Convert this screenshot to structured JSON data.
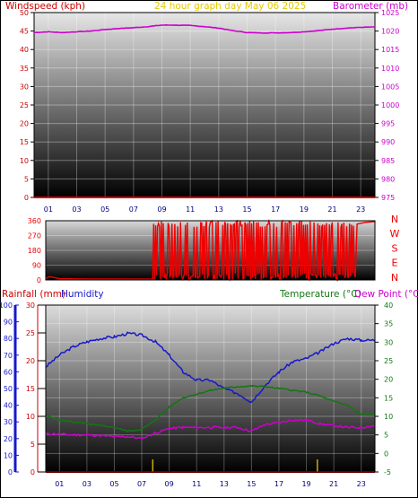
{
  "header": {
    "title": "24 hour graph day   May 06 2025",
    "wind_label": "Windspeed (kph)",
    "baro_label": "Barometer (mb)"
  },
  "rain_header": {
    "rainfall_label": "Rainfall (mm)",
    "humidity_label": "Humidity",
    "temperature_label": "Temperature (°C)",
    "dewpoint_label": "Dew Point (°C)"
  },
  "x_ticks": [
    "01",
    "03",
    "05",
    "07",
    "09",
    "11",
    "13",
    "15",
    "17",
    "19",
    "21",
    "23"
  ],
  "colors": {
    "wind_axis": "#cc0000",
    "baro_axis": "#cc00cc",
    "title": "#e6c800",
    "humidity": "#1818cc",
    "temperature": "#117711",
    "dewpoint": "#cc00cc",
    "direction": "#ee0000",
    "rain_marker": "#ccaa00"
  },
  "chart_data": [
    {
      "type": "line",
      "title": "24 hour graph day   May 06 2025",
      "x_ticks": [
        "01",
        "03",
        "05",
        "07",
        "09",
        "11",
        "13",
        "15",
        "17",
        "19",
        "21",
        "23"
      ],
      "left_axis": {
        "label": "Windspeed (kph)",
        "ylim": [
          0,
          50
        ],
        "ticks": [
          0,
          5,
          10,
          15,
          20,
          25,
          30,
          35,
          40,
          45,
          50
        ]
      },
      "right_axis": {
        "label": "Barometer (mb)",
        "ylim": [
          975,
          1025
        ],
        "ticks": [
          975,
          980,
          985,
          990,
          995,
          1000,
          1005,
          1010,
          1015,
          1020,
          1025
        ]
      },
      "series": [
        {
          "name": "Windspeed (kph)",
          "axis": "left",
          "x": [
            0,
            24
          ],
          "y": [
            0,
            0
          ]
        },
        {
          "name": "Barometer (mb)",
          "axis": "right",
          "x": [
            0,
            1,
            2,
            3,
            4,
            5,
            6,
            7,
            8,
            9,
            10,
            11,
            12,
            13,
            14,
            15,
            16,
            17,
            18,
            19,
            20,
            21,
            22,
            23,
            24
          ],
          "y": [
            1019.6,
            1019.8,
            1019.6,
            1019.8,
            1020.0,
            1020.4,
            1020.7,
            1020.9,
            1021.2,
            1021.6,
            1021.6,
            1021.5,
            1021.2,
            1020.8,
            1020.1,
            1019.6,
            1019.5,
            1019.5,
            1019.6,
            1019.8,
            1020.1,
            1020.5,
            1020.8,
            1021.0,
            1021.1
          ]
        }
      ]
    },
    {
      "type": "line",
      "title": "",
      "x_ticks": [
        "01",
        "03",
        "05",
        "07",
        "09",
        "11",
        "13",
        "15",
        "17",
        "19",
        "21",
        "23"
      ],
      "left_axis": {
        "label": "",
        "ylim": [
          0,
          360
        ],
        "ticks": [
          0,
          90,
          180,
          270,
          360
        ]
      },
      "right_axis": {
        "label": "",
        "ticks": [
          "N",
          "W",
          "S",
          "E",
          "N"
        ]
      },
      "series": [
        {
          "name": "",
          "note_units": "degrees",
          "x": [
            0,
            1,
            2,
            3,
            4,
            5,
            6,
            7,
            7.8,
            24
          ],
          "y": [
            5,
            10,
            5,
            5,
            5,
            5,
            5,
            5,
            5,
            355
          ]
        }
      ]
    },
    {
      "type": "line",
      "title": "",
      "x_ticks": [
        "01",
        "03",
        "05",
        "07",
        "09",
        "11",
        "13",
        "15",
        "17",
        "19",
        "21",
        "23"
      ],
      "axes": {
        "rainfall": {
          "label": "Rainfall (mm)",
          "ylim": [
            0,
            30
          ],
          "ticks": [
            0,
            5,
            10,
            15,
            20,
            25,
            30
          ]
        },
        "humidity": {
          "label": "Humidity",
          "ylim": [
            0,
            100
          ],
          "ticks": [
            0,
            10,
            20,
            30,
            40,
            50,
            60,
            70,
            80,
            90,
            100
          ]
        },
        "temperature": {
          "label": "Temperature (°C)",
          "ylim": [
            -5,
            40
          ],
          "ticks": [
            -5,
            0,
            5,
            10,
            15,
            20,
            25,
            30,
            35,
            40
          ]
        }
      },
      "series": [
        {
          "name": "Humidity",
          "axis": "humidity",
          "x": [
            0,
            1,
            2,
            3,
            4,
            5,
            6,
            7,
            8,
            9,
            10,
            11,
            12,
            13,
            14,
            15,
            16,
            17,
            18,
            19,
            20,
            21,
            22,
            23,
            24
          ],
          "y": [
            63,
            70,
            75,
            78,
            80,
            81,
            83,
            82,
            78,
            70,
            60,
            55,
            55,
            50,
            47,
            42,
            52,
            60,
            66,
            68,
            72,
            77,
            80,
            79,
            79
          ]
        },
        {
          "name": "Temperature (°C)",
          "axis": "temperature",
          "x": [
            0,
            1,
            2,
            3,
            4,
            5,
            6,
            7,
            8,
            9,
            10,
            11,
            12,
            13,
            14,
            15,
            16,
            17,
            18,
            19,
            20,
            21,
            22,
            23,
            24
          ],
          "y": [
            10.2,
            9.0,
            8.5,
            8.0,
            7.5,
            7.0,
            6.0,
            6.5,
            9.0,
            12.5,
            15.0,
            16.0,
            17.0,
            17.6,
            18.0,
            18.2,
            18.0,
            17.5,
            17.0,
            16.5,
            15.5,
            14.0,
            13.0,
            10.5,
            10.5
          ]
        },
        {
          "name": "Dew Point (°C)",
          "axis": "temperature",
          "x": [
            0,
            1,
            2,
            3,
            4,
            5,
            6,
            7,
            8,
            9,
            10,
            11,
            12,
            13,
            14,
            15,
            16,
            17,
            18,
            19,
            20,
            21,
            22,
            23,
            24
          ],
          "y": [
            5.3,
            5.2,
            5.0,
            5.0,
            4.8,
            4.5,
            4.5,
            4.0,
            5.5,
            6.7,
            7.0,
            7.0,
            7.0,
            7.0,
            7.0,
            6.0,
            7.8,
            8.3,
            9.0,
            9.0,
            8.0,
            7.5,
            7.0,
            7.0,
            7.5
          ]
        },
        {
          "name": "Rainfall (mm)",
          "axis": "rainfall",
          "x": [
            0,
            24
          ],
          "y": [
            0,
            0
          ]
        }
      ]
    }
  ]
}
